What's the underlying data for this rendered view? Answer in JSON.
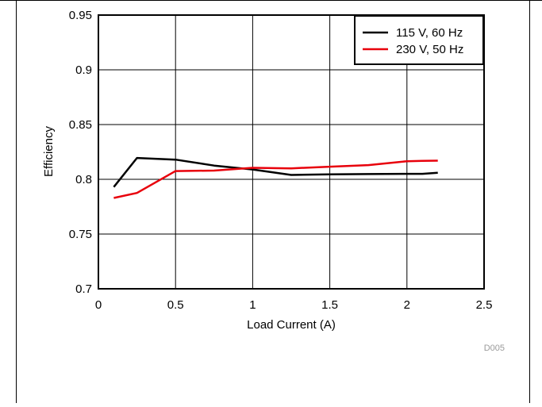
{
  "chart_data": {
    "type": "line",
    "xlabel": "Load Current (A)",
    "ylabel": "Efficiency",
    "xlim": [
      0,
      2.5
    ],
    "ylim": [
      0.7,
      0.95
    ],
    "xticks": [
      "0",
      "0.5",
      "1",
      "1.5",
      "2",
      "2.5"
    ],
    "yticks": [
      "0.7",
      "0.75",
      "0.8",
      "0.85",
      "0.9",
      "0.95"
    ],
    "grid": true,
    "legend_position": "top-right",
    "annotation": "D005",
    "series": [
      {
        "name": "115 V, 60 Hz",
        "color": "#000000",
        "x": [
          0.1,
          0.25,
          0.5,
          0.75,
          1.0,
          1.25,
          1.5,
          1.75,
          2.0,
          2.1,
          2.2
        ],
        "y": [
          0.793,
          0.8195,
          0.818,
          0.8125,
          0.809,
          0.804,
          0.8045,
          0.8048,
          0.805,
          0.805,
          0.806
        ]
      },
      {
        "name": "230 V, 50 Hz",
        "color": "#e8000b",
        "x": [
          0.1,
          0.25,
          0.5,
          0.75,
          1.0,
          1.25,
          1.5,
          1.75,
          2.0,
          2.1,
          2.2
        ],
        "y": [
          0.783,
          0.7875,
          0.8075,
          0.808,
          0.8105,
          0.81,
          0.8115,
          0.813,
          0.8165,
          0.8168,
          0.817
        ]
      }
    ]
  }
}
